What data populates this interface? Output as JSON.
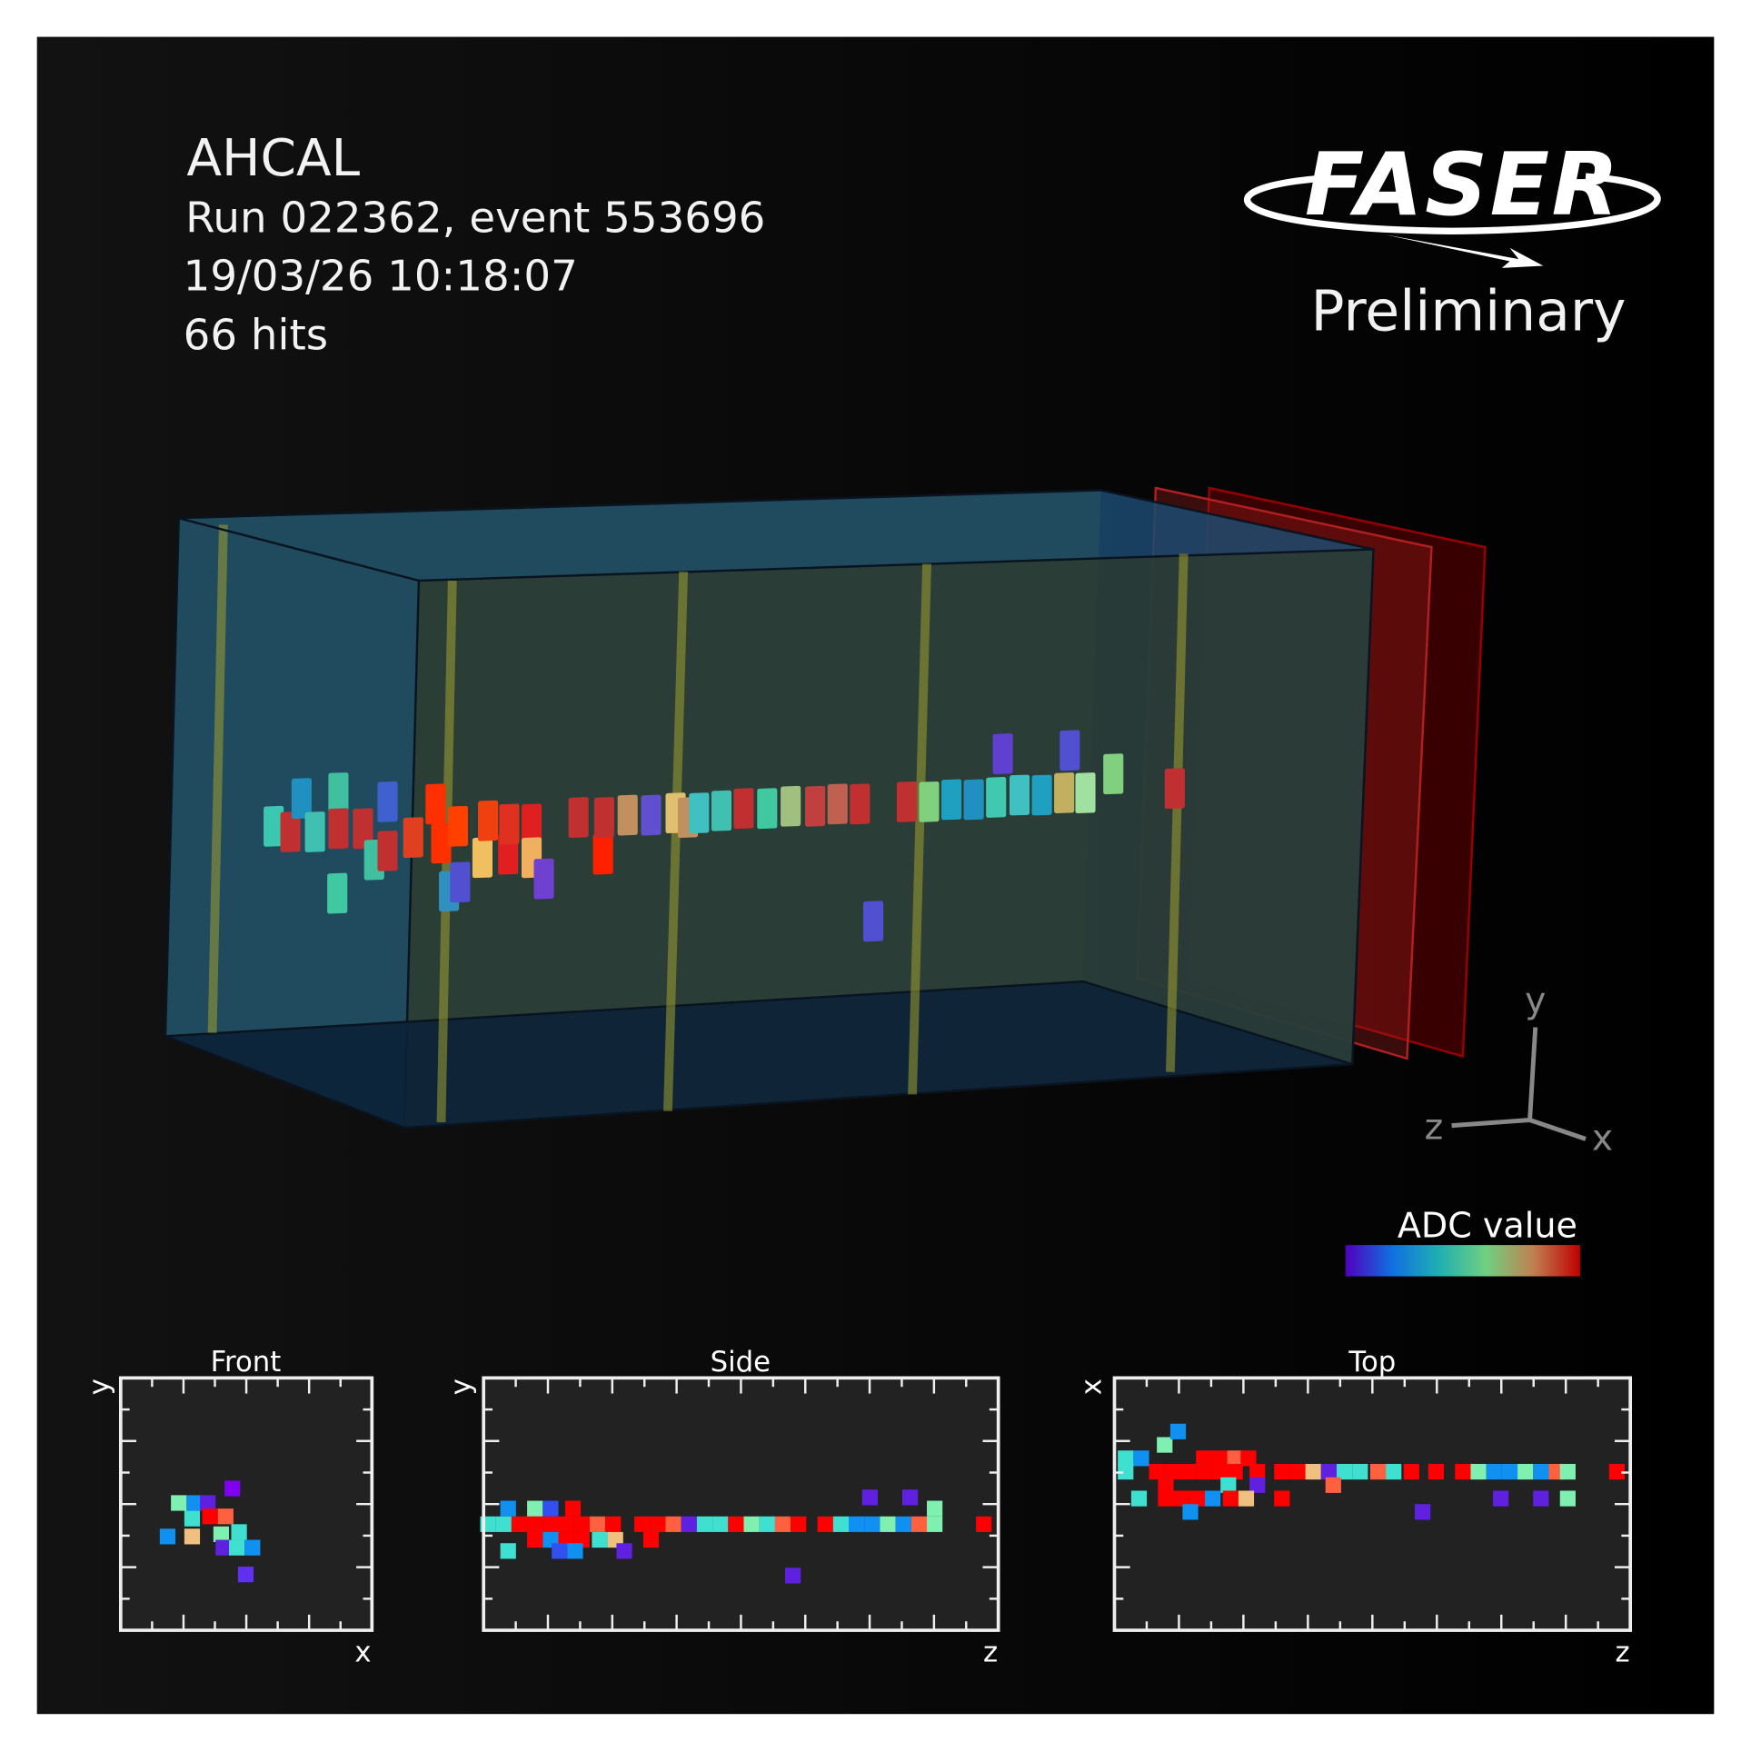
{
  "header": {
    "title": "AHCAL",
    "run": "Run 022362, event 553696",
    "timestamp": "19/03/26 10:18:07",
    "hits": "66 hits"
  },
  "logo": {
    "text": "FASER",
    "subtitle": "Preliminary"
  },
  "axes_triad": {
    "y": "y",
    "z": "z",
    "x": "x"
  },
  "colorbar": {
    "label": "ADC value"
  },
  "panels": [
    {
      "title": "Front",
      "xlabel": "x",
      "ylabel": "y"
    },
    {
      "title": "Side",
      "xlabel": "z",
      "ylabel": "y"
    },
    {
      "title": "Top",
      "xlabel": "z",
      "ylabel": "x"
    }
  ]
}
